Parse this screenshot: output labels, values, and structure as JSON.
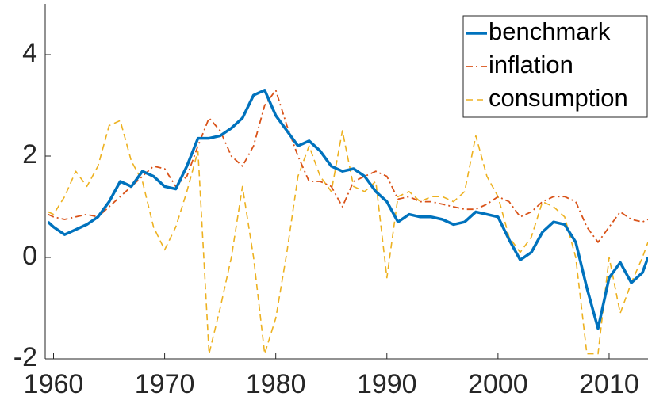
{
  "chart_data": {
    "type": "line",
    "x": [
      1959.5,
      1960,
      1961,
      1962,
      1963,
      1964,
      1965,
      1966,
      1967,
      1968,
      1969,
      1970,
      1971,
      1972,
      1973,
      1974,
      1975,
      1976,
      1977,
      1978,
      1979,
      1980,
      1981,
      1982,
      1983,
      1984,
      1985,
      1986,
      1987,
      1988,
      1989,
      1990,
      1991,
      1992,
      1993,
      1994,
      1995,
      1996,
      1997,
      1998,
      1999,
      2000,
      2001,
      2002,
      2003,
      2004,
      2005,
      2006,
      2007,
      2008,
      2009,
      2010,
      2011,
      2012,
      2013,
      2013.5
    ],
    "series": [
      {
        "name": "benchmark",
        "color": "#0072bd",
        "linestyle": "solid",
        "values": [
          0.7,
          0.6,
          0.45,
          0.55,
          0.65,
          0.8,
          1.1,
          1.5,
          1.4,
          1.7,
          1.6,
          1.4,
          1.35,
          1.8,
          2.35,
          2.35,
          2.4,
          2.55,
          2.75,
          3.2,
          3.3,
          2.8,
          2.5,
          2.2,
          2.3,
          2.1,
          1.8,
          1.7,
          1.75,
          1.6,
          1.3,
          1.1,
          0.7,
          0.85,
          0.8,
          0.8,
          0.75,
          0.65,
          0.7,
          0.9,
          0.85,
          0.8,
          0.35,
          -0.05,
          0.1,
          0.5,
          0.7,
          0.65,
          0.3,
          -0.6,
          -1.4,
          -0.4,
          -0.1,
          -0.5,
          -0.3,
          0.0
        ]
      },
      {
        "name": "inflation",
        "color": "#d95319",
        "linestyle": "dashdot",
        "values": [
          0.85,
          0.8,
          0.75,
          0.8,
          0.85,
          0.8,
          1.0,
          1.2,
          1.4,
          1.6,
          1.8,
          1.75,
          1.4,
          1.6,
          2.2,
          2.75,
          2.5,
          2.0,
          1.8,
          2.2,
          3.0,
          3.3,
          2.6,
          2.0,
          1.5,
          1.5,
          1.4,
          1.0,
          1.5,
          1.6,
          1.7,
          1.6,
          1.15,
          1.2,
          1.1,
          1.1,
          1.05,
          1.0,
          0.95,
          0.95,
          1.05,
          1.2,
          1.1,
          0.8,
          0.9,
          1.1,
          1.2,
          1.2,
          1.1,
          0.6,
          0.3,
          0.6,
          0.9,
          0.75,
          0.7,
          0.75
        ]
      },
      {
        "name": "consumption",
        "color": "#edb120",
        "linestyle": "dashed",
        "values": [
          0.9,
          0.85,
          1.2,
          1.7,
          1.4,
          1.8,
          2.6,
          2.7,
          1.9,
          1.5,
          0.6,
          0.15,
          0.6,
          1.3,
          2.1,
          -1.9,
          -1.0,
          0.0,
          1.4,
          0.0,
          -1.9,
          -1.2,
          0.1,
          1.6,
          2.2,
          1.6,
          1.3,
          2.5,
          1.4,
          1.3,
          1.5,
          -0.4,
          1.2,
          1.3,
          1.1,
          1.2,
          1.2,
          1.1,
          1.3,
          2.4,
          1.6,
          1.2,
          0.4,
          0.1,
          0.4,
          1.1,
          1.0,
          0.8,
          0.0,
          -1.9,
          -1.9,
          0.0,
          -1.1,
          -0.5,
          0.0,
          0.3
        ]
      }
    ],
    "xlim": [
      1959.25,
      2013.5
    ],
    "xticks": [
      1960,
      1970,
      1980,
      1990,
      2000,
      2010
    ],
    "ylim": [
      -2,
      5
    ],
    "yticks": [
      -2,
      0,
      2,
      4
    ],
    "legend": "northeast"
  }
}
